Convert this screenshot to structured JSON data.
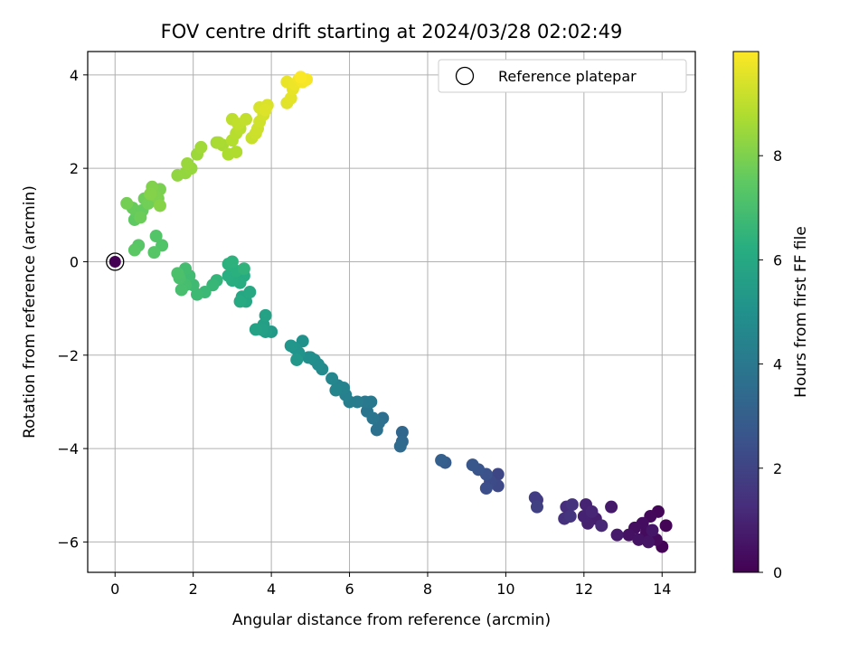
{
  "chart_data": {
    "type": "scatter",
    "title": "FOV centre drift starting at 2024/03/28 02:02:49",
    "xlabel": "Angular distance from reference (arcmin)",
    "ylabel": "Rotation from reference (arcmin)",
    "xlim": [
      -0.7,
      14.85
    ],
    "ylim": [
      -6.65,
      4.5
    ],
    "xticks": [
      "0",
      "2",
      "4",
      "6",
      "8",
      "10",
      "12",
      "14"
    ],
    "yticks": [
      "4",
      "2",
      "0",
      "−2",
      "−4",
      "−6"
    ],
    "grid": true,
    "legend": {
      "entries": [
        "Reference platepar"
      ],
      "position": "top-right"
    },
    "colorbar": {
      "label": "Hours from first FF file",
      "range": [
        0,
        10
      ],
      "ticks": [
        "0",
        "2",
        "4",
        "6",
        "8"
      ],
      "colormap": "viridis"
    },
    "reference_point": {
      "x": 0,
      "y": 0
    },
    "points": [
      [
        14.0,
        -6.1,
        0.05
      ],
      [
        14.1,
        -5.65,
        0.1
      ],
      [
        13.9,
        -5.35,
        0.15
      ],
      [
        13.7,
        -5.45,
        0.2
      ],
      [
        13.85,
        -5.95,
        0.25
      ],
      [
        13.6,
        -5.8,
        0.3
      ],
      [
        13.5,
        -5.6,
        0.35
      ],
      [
        13.3,
        -5.7,
        0.4
      ],
      [
        13.15,
        -5.85,
        0.45
      ],
      [
        13.4,
        -5.95,
        0.5
      ],
      [
        13.65,
        -6.0,
        0.55
      ],
      [
        13.75,
        -5.75,
        0.6
      ],
      [
        12.7,
        -5.25,
        0.7
      ],
      [
        12.85,
        -5.85,
        0.75
      ],
      [
        12.3,
        -5.5,
        0.85
      ],
      [
        12.1,
        -5.6,
        0.9
      ],
      [
        12.0,
        -5.45,
        0.95
      ],
      [
        12.05,
        -5.2,
        1.0
      ],
      [
        12.2,
        -5.35,
        1.05
      ],
      [
        12.45,
        -5.65,
        1.15
      ],
      [
        11.55,
        -5.25,
        1.3
      ],
      [
        11.5,
        -5.5,
        1.4
      ],
      [
        11.7,
        -5.2,
        1.45
      ],
      [
        11.65,
        -5.45,
        1.5
      ],
      [
        10.8,
        -5.1,
        1.7
      ],
      [
        10.75,
        -5.05,
        1.8
      ],
      [
        10.8,
        -5.25,
        1.9
      ],
      [
        9.8,
        -4.55,
        2.1
      ],
      [
        9.8,
        -4.8,
        2.2
      ],
      [
        9.6,
        -4.7,
        2.3
      ],
      [
        9.5,
        -4.85,
        2.4
      ],
      [
        9.5,
        -4.55,
        2.5
      ],
      [
        9.3,
        -4.45,
        2.6
      ],
      [
        9.15,
        -4.35,
        2.7
      ],
      [
        8.45,
        -4.3,
        2.9
      ],
      [
        8.35,
        -4.25,
        3.0
      ],
      [
        7.35,
        -3.65,
        3.3
      ],
      [
        7.35,
        -3.85,
        3.4
      ],
      [
        7.3,
        -3.95,
        3.45
      ],
      [
        6.85,
        -3.35,
        3.6
      ],
      [
        6.75,
        -3.45,
        3.7
      ],
      [
        6.7,
        -3.6,
        3.75
      ],
      [
        6.45,
        -3.2,
        3.85
      ],
      [
        6.6,
        -3.35,
        3.9
      ],
      [
        6.4,
        -3.0,
        4.0
      ],
      [
        6.55,
        -3.0,
        4.05
      ],
      [
        6.2,
        -3.0,
        4.15
      ],
      [
        6.0,
        -3.0,
        4.2
      ],
      [
        5.9,
        -2.85,
        4.3
      ],
      [
        5.85,
        -2.7,
        4.4
      ],
      [
        5.7,
        -2.65,
        4.45
      ],
      [
        5.65,
        -2.75,
        4.5
      ],
      [
        5.55,
        -2.5,
        4.55
      ],
      [
        5.3,
        -2.3,
        4.7
      ],
      [
        5.2,
        -2.2,
        4.8
      ],
      [
        5.1,
        -2.1,
        4.85
      ],
      [
        5.0,
        -2.05,
        4.9
      ],
      [
        4.95,
        -2.05,
        4.95
      ],
      [
        4.8,
        -1.7,
        5.0
      ],
      [
        4.7,
        -1.95,
        5.1
      ],
      [
        4.6,
        -1.85,
        5.15
      ],
      [
        4.5,
        -1.8,
        5.2
      ],
      [
        4.65,
        -2.1,
        5.25
      ],
      [
        4.0,
        -1.5,
        5.4
      ],
      [
        3.85,
        -1.5,
        5.5
      ],
      [
        3.8,
        -1.35,
        5.6
      ],
      [
        3.75,
        -1.45,
        5.65
      ],
      [
        3.85,
        -1.15,
        5.7
      ],
      [
        3.6,
        -1.45,
        5.75
      ],
      [
        3.25,
        -0.75,
        5.9
      ],
      [
        3.35,
        -0.85,
        5.95
      ],
      [
        3.45,
        -0.65,
        6.0
      ],
      [
        3.2,
        -0.85,
        6.05
      ],
      [
        3.3,
        -0.3,
        6.1
      ],
      [
        3.2,
        -0.45,
        6.15
      ],
      [
        3.0,
        -0.4,
        6.2
      ],
      [
        2.9,
        -0.3,
        6.25
      ],
      [
        3.1,
        -0.2,
        6.3
      ],
      [
        2.9,
        -0.05,
        6.35
      ],
      [
        3.0,
        0.0,
        6.4
      ],
      [
        3.3,
        -0.15,
        6.45
      ],
      [
        2.6,
        -0.4,
        6.55
      ],
      [
        2.5,
        -0.5,
        6.6
      ],
      [
        2.3,
        -0.65,
        6.7
      ],
      [
        2.1,
        -0.7,
        6.75
      ],
      [
        2.0,
        -0.5,
        6.8
      ],
      [
        1.9,
        -0.3,
        6.85
      ],
      [
        1.8,
        -0.15,
        6.9
      ],
      [
        1.8,
        -0.5,
        6.95
      ],
      [
        1.7,
        -0.6,
        7.0
      ],
      [
        1.65,
        -0.35,
        7.05
      ],
      [
        1.6,
        -0.25,
        7.1
      ],
      [
        1.2,
        0.35,
        7.2
      ],
      [
        1.05,
        0.55,
        7.25
      ],
      [
        1.0,
        0.2,
        7.3
      ],
      [
        0.6,
        0.35,
        7.35
      ],
      [
        0.5,
        0.25,
        7.4
      ],
      [
        0.5,
        0.9,
        7.5
      ],
      [
        0.55,
        1.05,
        7.55
      ],
      [
        0.7,
        1.1,
        7.6
      ],
      [
        0.45,
        1.15,
        7.65
      ],
      [
        0.65,
        0.95,
        7.7
      ],
      [
        0.75,
        1.35,
        7.75
      ],
      [
        0.85,
        1.25,
        7.8
      ],
      [
        0.3,
        1.25,
        7.85
      ],
      [
        1.1,
        1.35,
        7.9
      ],
      [
        1.15,
        1.55,
        7.95
      ],
      [
        1.05,
        1.4,
        8.0
      ],
      [
        0.95,
        1.6,
        8.05
      ],
      [
        0.9,
        1.45,
        8.1
      ],
      [
        1.15,
        1.2,
        8.15
      ],
      [
        1.6,
        1.85,
        8.3
      ],
      [
        1.8,
        1.9,
        8.35
      ],
      [
        1.95,
        2.0,
        8.4
      ],
      [
        1.85,
        2.1,
        8.45
      ],
      [
        2.1,
        2.3,
        8.5
      ],
      [
        2.2,
        2.45,
        8.55
      ],
      [
        2.6,
        2.55,
        8.6
      ],
      [
        2.75,
        2.5,
        8.65
      ],
      [
        2.65,
        2.55,
        8.7
      ],
      [
        2.9,
        2.3,
        8.75
      ],
      [
        3.1,
        2.35,
        8.8
      ],
      [
        3.0,
        2.6,
        8.85
      ],
      [
        3.1,
        2.75,
        8.9
      ],
      [
        3.2,
        2.85,
        8.95
      ],
      [
        3.0,
        3.05,
        9.0
      ],
      [
        3.15,
        2.95,
        9.05
      ],
      [
        3.35,
        3.05,
        9.1
      ],
      [
        3.5,
        2.65,
        9.15
      ],
      [
        3.6,
        2.75,
        9.2
      ],
      [
        3.65,
        2.85,
        9.25
      ],
      [
        3.7,
        3.0,
        9.3
      ],
      [
        3.8,
        3.15,
        9.35
      ],
      [
        3.7,
        3.3,
        9.4
      ],
      [
        3.9,
        3.35,
        9.45
      ],
      [
        3.85,
        3.25,
        9.5
      ],
      [
        4.4,
        3.4,
        9.55
      ],
      [
        4.5,
        3.5,
        9.6
      ],
      [
        4.55,
        3.7,
        9.65
      ],
      [
        4.4,
        3.85,
        9.7
      ],
      [
        4.6,
        3.8,
        9.75
      ],
      [
        4.7,
        3.9,
        9.8
      ],
      [
        4.8,
        3.85,
        9.85
      ],
      [
        4.9,
        3.9,
        9.9
      ],
      [
        4.75,
        3.95,
        9.95
      ]
    ]
  }
}
